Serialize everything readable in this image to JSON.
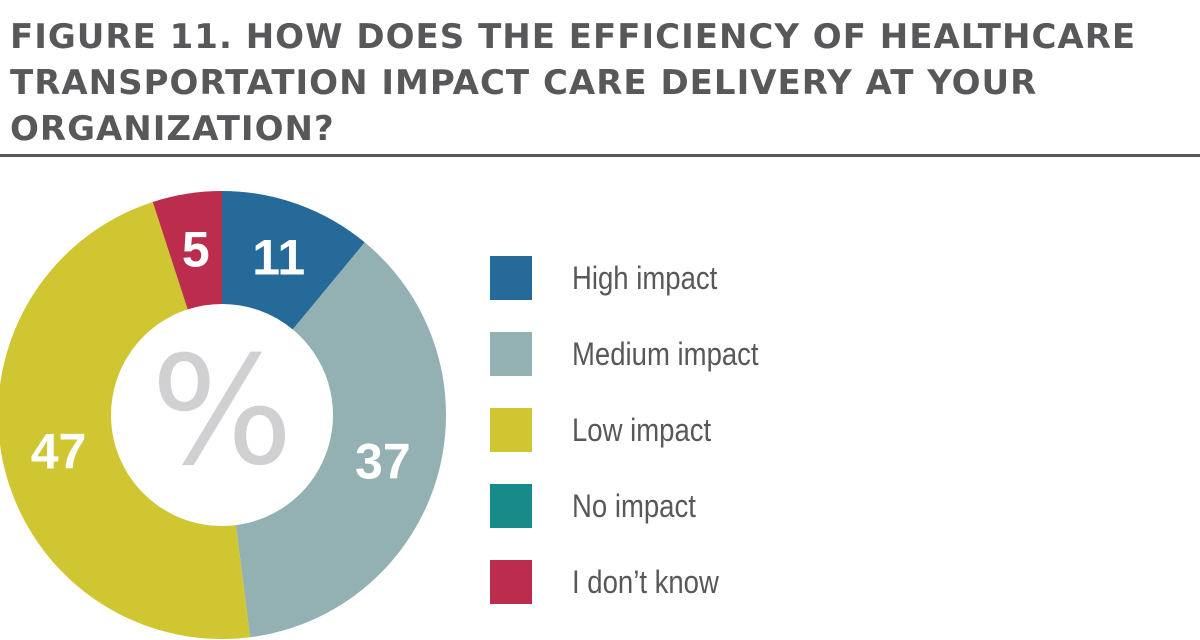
{
  "title": "FIGURE 11. HOW DOES THE EFFICIENCY OF HEALTHCARE TRANSPORTATION IMPACT CARE DELIVERY AT YOUR ORGANIZATION?",
  "chart_data": {
    "type": "pie",
    "title": "FIGURE 11. HOW DOES THE EFFICIENCY OF HEALTHCARE TRANSPORTATION IMPACT CARE DELIVERY AT YOUR ORGANIZATION?",
    "center_label": "%",
    "unit": "%",
    "legend_position": "right",
    "categories": [
      "High impact",
      "Medium impact",
      "Low impact",
      "No impact",
      "I don’t know"
    ],
    "values": [
      11,
      37,
      47,
      0,
      5
    ],
    "value_labels": [
      "11",
      "37",
      "47",
      "",
      "5"
    ],
    "colors": [
      "#256a99",
      "#93b1b3",
      "#cfc632",
      "#168b8a",
      "#bc2c4c"
    ]
  }
}
